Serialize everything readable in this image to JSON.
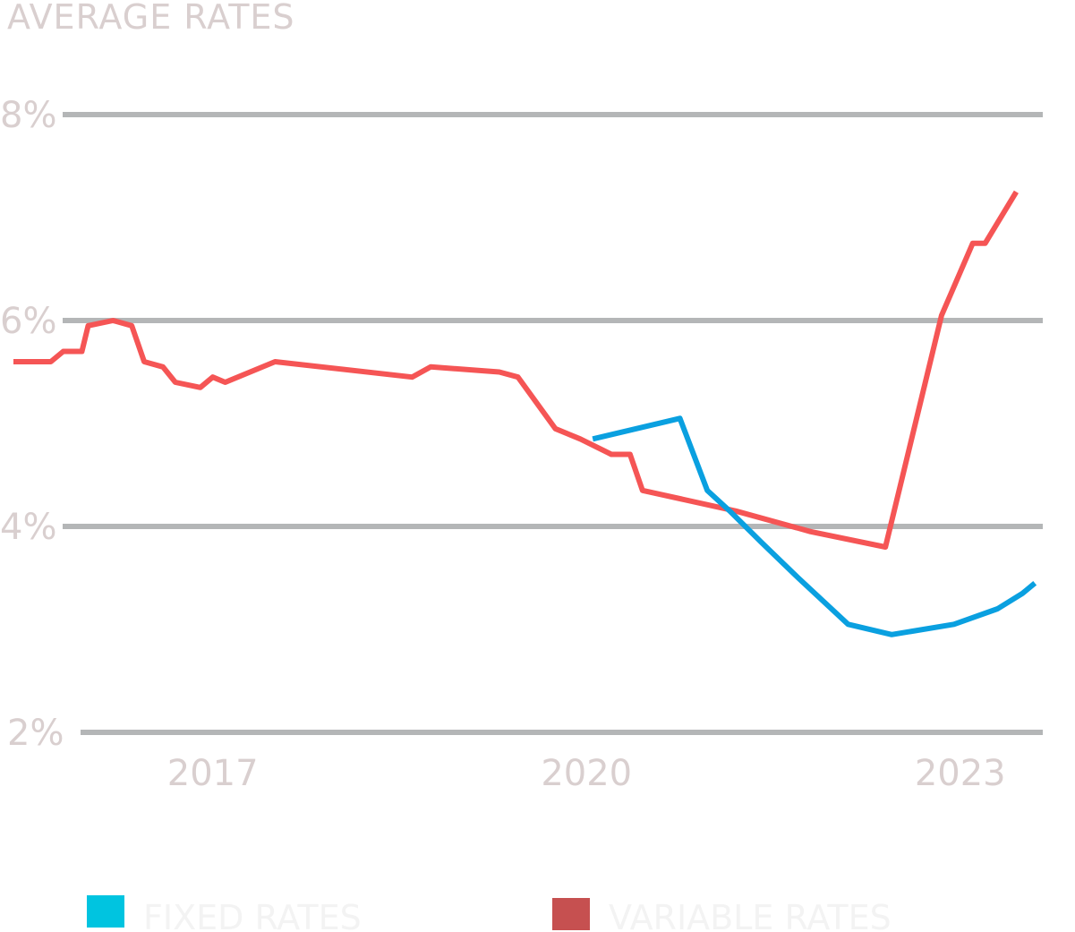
{
  "chart_data": {
    "type": "line",
    "title": "AVERAGE RATES",
    "xlabel": "",
    "ylabel": "",
    "ylim": [
      2,
      8
    ],
    "yticks": [
      {
        "value": 8,
        "label": "8%"
      },
      {
        "value": 6,
        "label": "6%"
      },
      {
        "value": 4,
        "label": "4%"
      },
      {
        "value": 2,
        "label": "2%"
      }
    ],
    "xticks": [
      {
        "value": 2017,
        "label": "2017"
      },
      {
        "value": 2020,
        "label": "2020"
      },
      {
        "value": 2023,
        "label": "2023"
      }
    ],
    "xlim": [
      2015.4,
      2023.9
    ],
    "grid": true,
    "legend_position": "bottom",
    "series": [
      {
        "name": "FIXED RATES",
        "color": "#0aa0e0",
        "points": [
          [
            2020.05,
            4.85
          ],
          [
            2020.75,
            5.05
          ],
          [
            2020.97,
            4.35
          ],
          [
            2021.15,
            4.15
          ],
          [
            2021.4,
            3.85
          ],
          [
            2021.7,
            3.5
          ],
          [
            2022.1,
            3.05
          ],
          [
            2022.45,
            2.95
          ],
          [
            2022.95,
            3.05
          ],
          [
            2023.3,
            3.2
          ],
          [
            2023.5,
            3.35
          ],
          [
            2023.6,
            3.45
          ]
        ]
      },
      {
        "name": "VARIABLE RATES",
        "color": "#f55555",
        "points": [
          [
            2015.4,
            5.6
          ],
          [
            2015.7,
            5.6
          ],
          [
            2015.8,
            5.7
          ],
          [
            2015.95,
            5.7
          ],
          [
            2016.0,
            5.95
          ],
          [
            2016.2,
            6.0
          ],
          [
            2016.35,
            5.95
          ],
          [
            2016.45,
            5.6
          ],
          [
            2016.6,
            5.55
          ],
          [
            2016.7,
            5.4
          ],
          [
            2016.9,
            5.35
          ],
          [
            2017.0,
            5.45
          ],
          [
            2017.1,
            5.4
          ],
          [
            2017.5,
            5.6
          ],
          [
            2018.6,
            5.45
          ],
          [
            2018.75,
            5.55
          ],
          [
            2019.3,
            5.5
          ],
          [
            2019.45,
            5.45
          ],
          [
            2019.75,
            4.95
          ],
          [
            2019.95,
            4.85
          ],
          [
            2020.2,
            4.7
          ],
          [
            2020.35,
            4.7
          ],
          [
            2020.45,
            4.35
          ],
          [
            2021.2,
            4.15
          ],
          [
            2021.8,
            3.95
          ],
          [
            2022.4,
            3.8
          ],
          [
            2022.85,
            6.05
          ],
          [
            2023.1,
            6.75
          ],
          [
            2023.2,
            6.75
          ],
          [
            2023.45,
            7.25
          ]
        ]
      }
    ]
  }
}
